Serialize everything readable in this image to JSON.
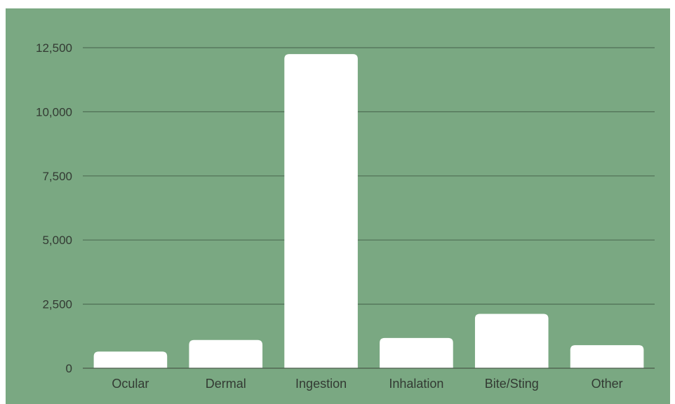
{
  "chart_data": {
    "type": "bar",
    "categories": [
      "Ocular",
      "Dermal",
      "Ingestion",
      "Inhalation",
      "Bite/Sting",
      "Other"
    ],
    "values": [
      650,
      1100,
      12250,
      1180,
      2120,
      900
    ],
    "ylim": [
      0,
      12500
    ],
    "yticks": [
      0,
      2500,
      5000,
      7500,
      10000,
      12500
    ],
    "ytick_labels": [
      "0",
      "2,500",
      "5,000",
      "7,500",
      "10,000",
      "12,500"
    ],
    "grid": true,
    "legend": "none"
  },
  "colors": {
    "background": "#7aa882",
    "bar": "#ffffff",
    "grid": "#4f6e55",
    "axis": "#4a5a4a",
    "text": "#333a33"
  }
}
